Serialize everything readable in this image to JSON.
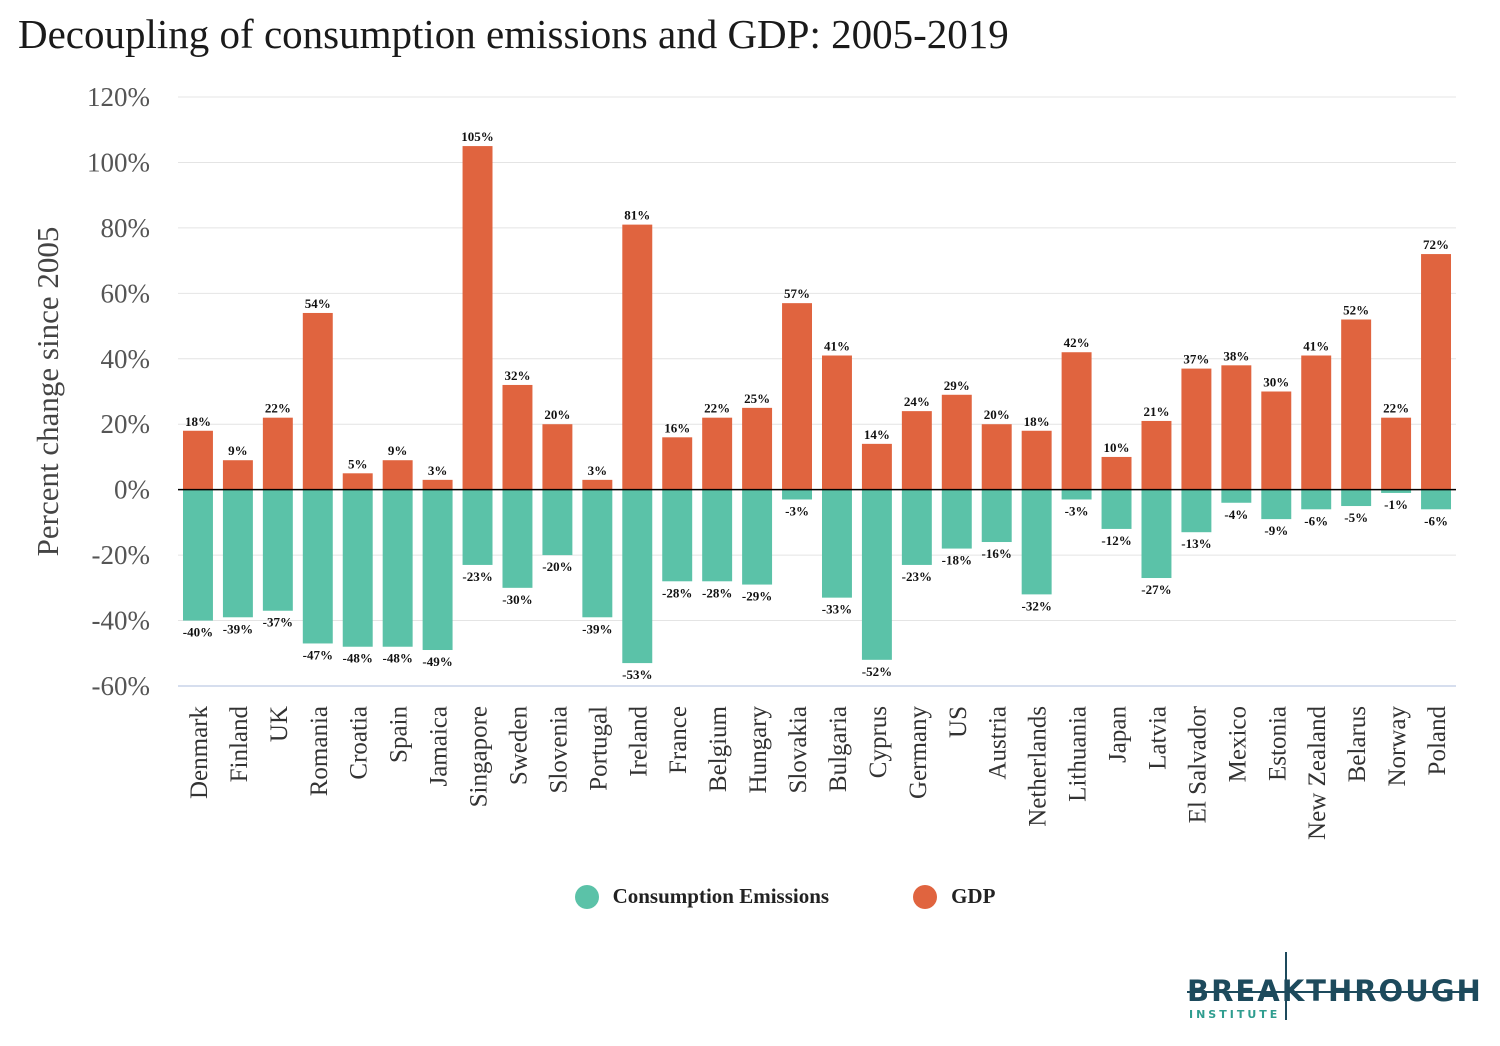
{
  "title": "Decoupling of consumption emissions and GDP: 2005-2019",
  "logo": {
    "word": "BREAKTHROUGH",
    "sub": "INSTITUTE"
  },
  "colors": {
    "emissions": "#5bc2a8",
    "gdp": "#e0643f",
    "grid": "#e4e4e4",
    "zero_line": "#000000",
    "bottom_line": "#c8d3e8"
  },
  "legend": {
    "position": "bottom-center",
    "items": [
      {
        "label": "Consumption Emissions",
        "color": "#5bc2a8"
      },
      {
        "label": "GDP",
        "color": "#e0643f"
      }
    ]
  },
  "chart_data": {
    "type": "bar",
    "title": "Decoupling of consumption emissions and GDP: 2005-2019",
    "xlabel": "",
    "ylabel": "Percent change since 2005",
    "ylim": [
      -60,
      120
    ],
    "yticks": [
      -60,
      -40,
      -20,
      0,
      20,
      40,
      60,
      80,
      100,
      120
    ],
    "ytick_labels": [
      "-60%",
      "-40%",
      "-20%",
      "0%",
      "20%",
      "40%",
      "60%",
      "80%",
      "100%",
      "120%"
    ],
    "grid": true,
    "categories": [
      "Denmark",
      "Finland",
      "UK",
      "Romania",
      "Croatia",
      "Spain",
      "Jamaica",
      "Singapore",
      "Sweden",
      "Slovenia",
      "Portugal",
      "Ireland",
      "France",
      "Belgium",
      "Hungary",
      "Slovakia",
      "Bulgaria",
      "Cyprus",
      "Germany",
      "US",
      "Austria",
      "Netherlands",
      "Lithuania",
      "Japan",
      "Latvia",
      "El Salvador",
      "Mexico",
      "Estonia",
      "New Zealand",
      "Belarus",
      "Norway",
      "Poland"
    ],
    "series": [
      {
        "name": "Consumption Emissions",
        "color": "#5bc2a8",
        "values": [
          -40,
          -39,
          -37,
          -47,
          -48,
          -48,
          -49,
          -23,
          -30,
          -20,
          -39,
          -53,
          -28,
          -28,
          -29,
          -3,
          -33,
          -52,
          -23,
          -18,
          -16,
          -32,
          -3,
          -12,
          -27,
          -13,
          -4,
          -9,
          -6,
          -5,
          -1,
          -6
        ],
        "labels": [
          "-40%",
          "-39%",
          "-37%",
          "-47%",
          "-48%",
          "-48%",
          "-49%",
          "-23%",
          "-30%",
          "-20%",
          "-39%",
          "-53%",
          "-28%",
          "-28%",
          "-29%",
          "-3%",
          "-33%",
          "-52%",
          "-23%",
          "-18%",
          "-16%",
          "-32%",
          "-3%",
          "-12%",
          "-27%",
          "-13%",
          "-4%",
          "-9%",
          "-6%",
          "-5%",
          "-1%",
          "-6%"
        ]
      },
      {
        "name": "GDP",
        "color": "#e0643f",
        "values": [
          18,
          9,
          22,
          54,
          5,
          9,
          3,
          105,
          32,
          20,
          3,
          81,
          16,
          22,
          25,
          57,
          41,
          14,
          24,
          29,
          20,
          18,
          42,
          10,
          21,
          37,
          38,
          30,
          41,
          52,
          22,
          72
        ],
        "labels": [
          "18%",
          "9%",
          "22%",
          "54%",
          "5%",
          "9%",
          "3%",
          "105%",
          "32%",
          "20%",
          "3%",
          "81%",
          "16%",
          "22%",
          "25%",
          "57%",
          "41%",
          "14%",
          "24%",
          "29%",
          "20%",
          "18%",
          "42%",
          "10%",
          "21%",
          "37%",
          "38%",
          "30%",
          "41%",
          "52%",
          "22%",
          "72%"
        ]
      }
    ]
  }
}
